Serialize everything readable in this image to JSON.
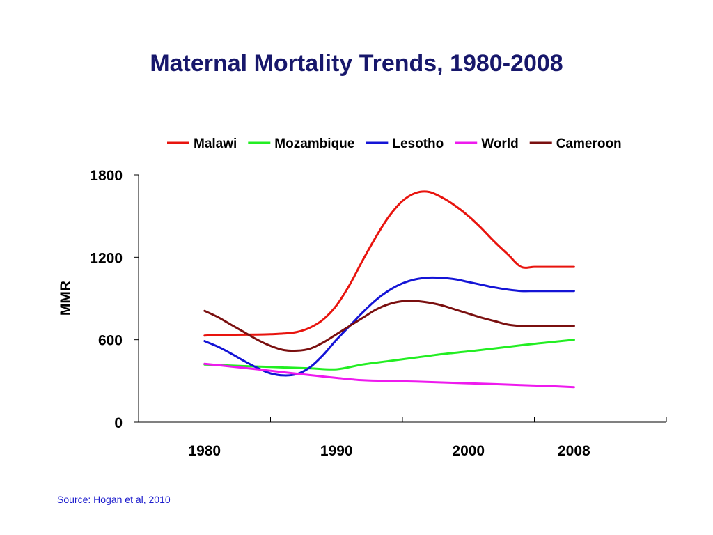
{
  "title": "Maternal Mortality Trends, 1980-2008",
  "source": "Source: Hogan et al, 2010",
  "chart_data": {
    "type": "line",
    "ylabel": "MMR",
    "xlabel": "",
    "ylim": [
      0,
      1800
    ],
    "xlim": [
      1975,
      2015
    ],
    "yticks": [
      0,
      600,
      1200,
      1800
    ],
    "xtick_labels": [
      {
        "x": 1980,
        "label": "1980"
      },
      {
        "x": 1990,
        "label": "1990"
      },
      {
        "x": 2000,
        "label": "2000"
      },
      {
        "x": 2008,
        "label": "2008"
      }
    ],
    "grid": false,
    "legend_position": "top",
    "series": [
      {
        "name": "Malawi",
        "color": "#e8140e",
        "x": [
          1980,
          1981,
          1982,
          1983,
          1984,
          1985,
          1986,
          1987,
          1988,
          1989,
          1990,
          1991,
          1992,
          1993,
          1994,
          1995,
          1996,
          1997,
          1998,
          1999,
          2000,
          2001,
          2002,
          2003,
          2004,
          2005,
          2006,
          2007,
          2008
        ],
        "y": [
          630,
          635,
          636,
          637,
          638,
          640,
          645,
          656,
          688,
          748,
          850,
          1000,
          1180,
          1350,
          1500,
          1610,
          1668,
          1676,
          1635,
          1575,
          1500,
          1410,
          1310,
          1220,
          1130,
          1130,
          1130,
          1130,
          1130
        ]
      },
      {
        "name": "Mozambique",
        "color": "#22ee22",
        "x": [
          1980,
          1982,
          1984,
          1986,
          1988,
          1990,
          1992,
          1994,
          1996,
          1998,
          2000,
          2002,
          2004,
          2006,
          2008
        ],
        "y": [
          420,
          412,
          405,
          398,
          392,
          385,
          420,
          445,
          470,
          495,
          515,
          537,
          560,
          580,
          600
        ]
      },
      {
        "name": "Lesotho",
        "color": "#1414d6",
        "x": [
          1980,
          1981,
          1982,
          1983,
          1984,
          1985,
          1986,
          1987,
          1988,
          1989,
          1990,
          1991,
          1992,
          1993,
          1994,
          1995,
          1996,
          1997,
          1998,
          1999,
          2000,
          2001,
          2002,
          2003,
          2004,
          2005,
          2006,
          2007,
          2008
        ],
        "y": [
          590,
          550,
          500,
          445,
          395,
          355,
          340,
          350,
          400,
          490,
          600,
          700,
          800,
          890,
          960,
          1010,
          1040,
          1052,
          1050,
          1040,
          1020,
          1000,
          980,
          965,
          955,
          955,
          955,
          955,
          955
        ]
      },
      {
        "name": "World",
        "color": "#ee1aee",
        "x": [
          1980,
          1982,
          1984,
          1986,
          1988,
          1990,
          1992,
          1994,
          1996,
          1998,
          2000,
          2002,
          2004,
          2006,
          2008
        ],
        "y": [
          425,
          405,
          385,
          363,
          342,
          322,
          305,
          300,
          295,
          289,
          283,
          277,
          270,
          263,
          255
        ]
      },
      {
        "name": "Cameroon",
        "color": "#7a0f0f",
        "x": [
          1980,
          1981,
          1982,
          1983,
          1984,
          1985,
          1986,
          1987,
          1988,
          1989,
          1990,
          1991,
          1992,
          1993,
          1994,
          1995,
          1996,
          1997,
          1998,
          1999,
          2000,
          2001,
          2002,
          2003,
          2004,
          2005,
          2006,
          2007,
          2008
        ],
        "y": [
          810,
          765,
          710,
          655,
          600,
          555,
          525,
          520,
          535,
          580,
          640,
          700,
          760,
          820,
          860,
          880,
          882,
          870,
          850,
          820,
          790,
          760,
          735,
          710,
          700,
          700,
          700,
          700,
          700
        ]
      }
    ]
  }
}
